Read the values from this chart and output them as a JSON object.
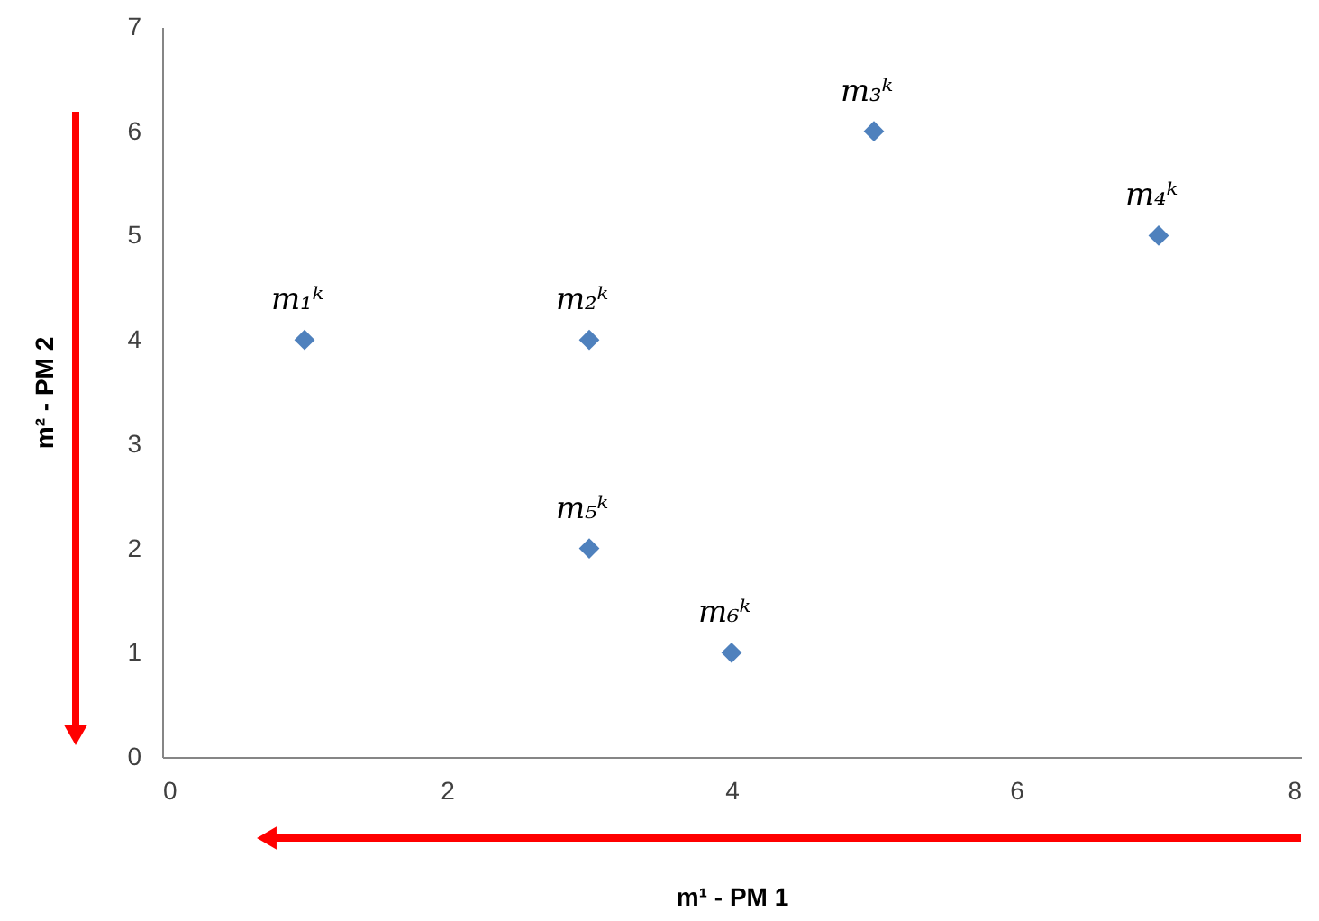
{
  "chart_data": {
    "type": "scatter",
    "xlabel": "m¹ - PM 1",
    "ylabel": "m² - PM 2",
    "x": [
      1,
      3,
      5,
      7,
      3,
      4
    ],
    "series": [
      {
        "color": "#4f81bd",
        "values": [
          4,
          4,
          6,
          5,
          2,
          1
        ]
      }
    ],
    "annotations": [
      {
        "text": "m₁ᵏ",
        "x": 1,
        "y": 4
      },
      {
        "text": "m₂ᵏ",
        "x": 3,
        "y": 4
      },
      {
        "text": "m₃ᵏ",
        "x": 5,
        "y": 6
      },
      {
        "text": "m₄ᵏ",
        "x": 7,
        "y": 5
      },
      {
        "text": "m₅ᵏ",
        "x": 3,
        "y": 2
      },
      {
        "text": "m₆ᵏ",
        "x": 4,
        "y": 1
      }
    ],
    "xlim": [
      0,
      8
    ],
    "xticks": [
      0,
      2,
      4,
      6,
      8
    ],
    "ylim": [
      0,
      7
    ],
    "yticks": [
      0,
      1,
      2,
      3,
      4,
      5,
      6,
      7
    ],
    "marker": "diamond",
    "grid": false
  }
}
